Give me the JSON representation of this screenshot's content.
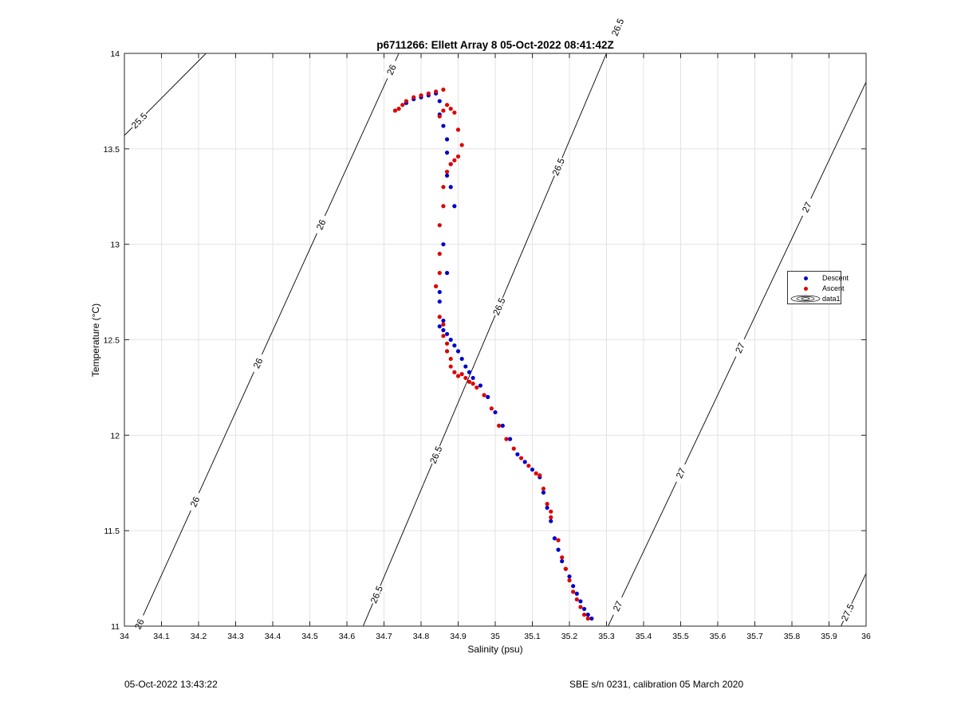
{
  "chart_data": {
    "type": "scatter",
    "title": "p6711266: Ellett Array 8 05-Oct-2022 08:41:42Z",
    "xlabel": "Salinity (psu)",
    "ylabel": "Temperature (°C)",
    "xlim": [
      34,
      36
    ],
    "ylim": [
      11,
      14
    ],
    "x_ticks": [
      34,
      34.1,
      34.2,
      34.3,
      34.4,
      34.5,
      34.6,
      34.7,
      34.8,
      34.9,
      35,
      35.1,
      35.2,
      35.3,
      35.4,
      35.5,
      35.6,
      35.7,
      35.8,
      35.9,
      36
    ],
    "x_tick_labels": [
      "34",
      "34.1",
      "34.2",
      "34.3",
      "34.4",
      "34.5",
      "34.6",
      "34.7",
      "34.8",
      "34.9",
      "35",
      "35.1",
      "35.2",
      "35.3",
      "35.4",
      "35.5",
      "35.6",
      "35.7",
      "35.8",
      "35.9",
      "36"
    ],
    "y_ticks": [
      11,
      11.5,
      12,
      12.5,
      13,
      13.5,
      14
    ],
    "y_tick_labels": [
      "11",
      "11.5",
      "12",
      "12.5",
      "13",
      "13.5",
      "14"
    ],
    "grid": true,
    "legend_position": "right",
    "series": [
      {
        "name": "Descent",
        "color": "#0000cc",
        "x": [
          34.76,
          34.78,
          34.8,
          34.82,
          34.84,
          34.85,
          34.85,
          34.86,
          34.87,
          34.87,
          34.88,
          34.87,
          34.88,
          34.89,
          34.86,
          34.87,
          34.85,
          34.85,
          34.86,
          34.85,
          34.86,
          34.87,
          34.88,
          34.89,
          34.9,
          34.91,
          34.92,
          34.93,
          34.94,
          34.96,
          34.98,
          35.0,
          35.02,
          35.04,
          35.06,
          35.08,
          35.1,
          35.12,
          35.13,
          35.14,
          35.15,
          35.16,
          35.17,
          35.18,
          35.19,
          35.2,
          35.21,
          35.22,
          35.23,
          35.24,
          35.25,
          35.26
        ],
        "y": [
          13.74,
          13.76,
          13.77,
          13.78,
          13.79,
          13.75,
          13.68,
          13.62,
          13.55,
          13.48,
          13.42,
          13.36,
          13.3,
          13.2,
          13.0,
          12.85,
          12.75,
          12.7,
          12.6,
          12.57,
          12.55,
          12.53,
          12.5,
          12.47,
          12.44,
          12.4,
          12.36,
          12.33,
          12.3,
          12.26,
          12.2,
          12.12,
          12.05,
          11.98,
          11.9,
          11.86,
          11.82,
          11.78,
          11.7,
          11.62,
          11.55,
          11.46,
          11.4,
          11.34,
          11.3,
          11.26,
          11.21,
          11.17,
          11.13,
          11.09,
          11.06,
          11.04
        ]
      },
      {
        "name": "Ascent",
        "color": "#dd0000",
        "x": [
          34.73,
          34.74,
          34.75,
          34.76,
          34.78,
          34.8,
          34.82,
          34.84,
          34.86,
          34.86,
          34.85,
          34.87,
          34.88,
          34.89,
          34.9,
          34.91,
          34.9,
          34.89,
          34.88,
          34.87,
          34.86,
          34.86,
          34.85,
          34.85,
          34.85,
          34.84,
          34.85,
          34.86,
          34.86,
          34.87,
          34.87,
          34.88,
          34.88,
          34.89,
          34.9,
          34.91,
          34.92,
          34.93,
          34.94,
          34.95,
          34.97,
          34.99,
          35.01,
          35.03,
          35.05,
          35.07,
          35.09,
          35.11,
          35.12,
          35.13,
          35.14,
          35.15,
          35.15,
          35.17,
          35.18,
          35.19,
          35.2,
          35.21,
          35.22,
          35.23,
          35.24,
          35.25
        ],
        "y": [
          13.7,
          13.71,
          13.73,
          13.75,
          13.77,
          13.78,
          13.79,
          13.8,
          13.81,
          13.7,
          13.67,
          13.73,
          13.71,
          13.69,
          13.6,
          13.52,
          13.46,
          13.44,
          13.42,
          13.38,
          13.3,
          13.2,
          13.1,
          12.95,
          12.85,
          12.78,
          12.62,
          12.58,
          12.52,
          12.48,
          12.44,
          12.4,
          12.36,
          12.33,
          12.31,
          12.32,
          12.3,
          12.28,
          12.27,
          12.25,
          12.21,
          12.14,
          12.05,
          11.98,
          11.93,
          11.88,
          11.84,
          11.8,
          11.79,
          11.72,
          11.64,
          11.6,
          11.57,
          11.45,
          11.36,
          11.3,
          11.24,
          11.18,
          11.14,
          11.1,
          11.06,
          11.04
        ]
      }
    ],
    "legend": [
      "Descent",
      "Ascent",
      "data1"
    ],
    "contours": {
      "colour": "#000000",
      "lines": [
        {
          "level": "25.5",
          "labels": [
            "25.5"
          ]
        },
        {
          "level": "26",
          "labels": [
            "26",
            "26",
            "26",
            "26",
            "26"
          ]
        },
        {
          "level": "26.5",
          "labels": [
            "26.5",
            "26.5",
            "26.5",
            "26.5",
            "26.5"
          ]
        },
        {
          "level": "27",
          "labels": [
            "27",
            "27",
            "27",
            "27"
          ]
        },
        {
          "level": "27.5",
          "labels": [
            "27.5"
          ]
        }
      ]
    }
  },
  "footer": {
    "left": "05-Oct-2022 13:43:22",
    "right": "SBE s/n 0231, calibration 05 March 2020"
  }
}
